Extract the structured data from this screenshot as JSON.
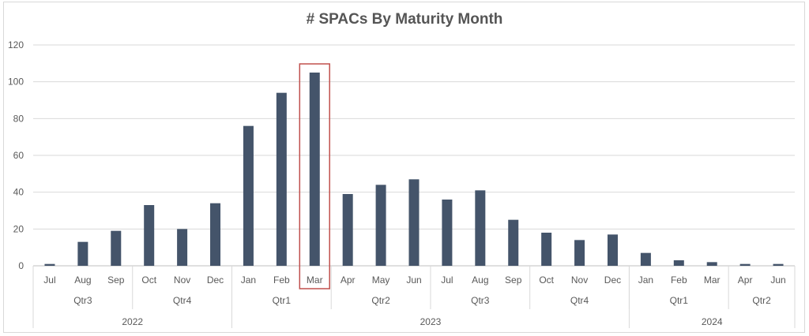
{
  "chart_data": {
    "type": "bar",
    "title": "# SPACs By Maturity Month",
    "xlabel": "",
    "ylabel": "",
    "ylim": [
      0,
      120
    ],
    "yticks": [
      "0",
      "20",
      "40",
      "60",
      "80",
      "100",
      "120"
    ],
    "grid": true,
    "bar_color": "#44546a",
    "highlight_color": "#c0504d",
    "highlighted_category_index": 8,
    "categories": [
      "Jul",
      "Aug",
      "Sep",
      "Oct",
      "Nov",
      "Dec",
      "Jan",
      "Feb",
      "Mar",
      "Apr",
      "May",
      "Jun",
      "Jul",
      "Aug",
      "Sep",
      "Oct",
      "Nov",
      "Dec",
      "Jan",
      "Feb",
      "Mar",
      "Apr",
      "Jun"
    ],
    "values": [
      1,
      13,
      19,
      33,
      20,
      34,
      76,
      94,
      105,
      39,
      44,
      47,
      36,
      41,
      25,
      18,
      14,
      17,
      7,
      3,
      2,
      1,
      1
    ],
    "quarters": [
      {
        "label": "Qtr3",
        "start": 0,
        "end": 2
      },
      {
        "label": "Qtr4",
        "start": 3,
        "end": 5
      },
      {
        "label": "Qtr1",
        "start": 6,
        "end": 8
      },
      {
        "label": "Qtr2",
        "start": 9,
        "end": 11
      },
      {
        "label": "Qtr3",
        "start": 12,
        "end": 14
      },
      {
        "label": "Qtr4",
        "start": 15,
        "end": 17
      },
      {
        "label": "Qtr1",
        "start": 18,
        "end": 20
      },
      {
        "label": "Qtr2",
        "start": 21,
        "end": 22
      }
    ],
    "years": [
      {
        "label": "2022",
        "start": 0,
        "end": 5
      },
      {
        "label": "2023",
        "start": 6,
        "end": 17
      },
      {
        "label": "2024",
        "start": 18,
        "end": 22
      }
    ]
  }
}
